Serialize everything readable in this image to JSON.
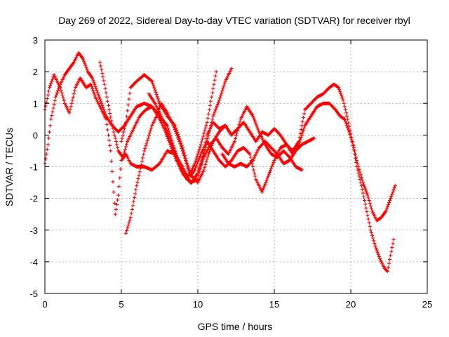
{
  "chart_data": {
    "type": "scatter",
    "title": "Day 269 of 2022, Sidereal Day-to-day VTEC variation (SDTVAR) for receiver rbyl",
    "xlabel": "GPS time / hours",
    "ylabel": "SDTVAR / TECUs",
    "xlim": [
      0,
      25
    ],
    "ylim": [
      -5,
      3
    ],
    "x_ticks": [
      0,
      5,
      10,
      15,
      20,
      25
    ],
    "y_ticks": [
      -5,
      -4,
      -3,
      -2,
      -1,
      0,
      1,
      2,
      3
    ],
    "grid": true,
    "legend": "none",
    "marker": "plus",
    "color": "#ff0000",
    "series": [
      {
        "x": [
          0.0,
          0.3,
          0.6,
          1.0,
          1.3,
          1.6,
          1.8,
          2.0,
          2.3,
          2.7,
          3.0,
          3.3,
          3.6,
          4.0,
          4.3,
          4.5,
          4.6,
          4.8,
          5.0,
          5.3,
          5.6,
          6.0,
          6.5,
          7.0,
          7.5,
          8.0,
          8.5,
          9.0,
          9.5,
          10.0,
          10.3,
          10.6,
          11.0,
          11.4,
          11.8,
          12.2
        ],
        "y": [
          0.8,
          1.5,
          1.9,
          1.5,
          1.0,
          0.7,
          1.1,
          1.5,
          1.8,
          1.5,
          1.6,
          1.2,
          0.9,
          0.5,
          -0.5,
          -1.8,
          -2.5,
          -1.9,
          -0.8,
          -0.6,
          -0.9,
          -1.0,
          -1.0,
          -1.1,
          -0.9,
          -0.5,
          -0.6,
          -1.0,
          -1.5,
          -1.4,
          -0.7,
          0.0,
          0.4,
          0.2,
          0.3,
          0.0
        ]
      },
      {
        "x": [
          0.0,
          0.2,
          0.4,
          0.7,
          1.0,
          1.3,
          1.6,
          1.9,
          2.2,
          2.5,
          2.8,
          3.1,
          3.4,
          3.7,
          4.0,
          4.4,
          4.8,
          5.2,
          5.6,
          6.0,
          6.5,
          7.0,
          7.5,
          8.0,
          8.5,
          9.0,
          9.3,
          9.6,
          10.0,
          10.4,
          10.7,
          11.0,
          11.4,
          11.8,
          12.2
        ],
        "y": [
          -0.9,
          -0.3,
          0.5,
          1.2,
          1.6,
          1.9,
          2.1,
          2.3,
          2.6,
          2.4,
          2.0,
          1.8,
          1.4,
          1.0,
          0.6,
          0.3,
          0.1,
          0.3,
          0.6,
          0.9,
          1.0,
          0.9,
          0.6,
          0.3,
          -0.5,
          -1.2,
          -1.4,
          -1.5,
          -1.2,
          -0.6,
          0.0,
          0.6,
          1.1,
          1.7,
          2.1
        ]
      },
      {
        "x": [
          5.0,
          5.3,
          5.6,
          6.0,
          6.5,
          7.0,
          7.5,
          8.0,
          8.5,
          9.0,
          9.3,
          9.6,
          10.0,
          10.4,
          10.7,
          11.0,
          11.4,
          11.8,
          12.2,
          12.6,
          13.0,
          13.4,
          13.8,
          14.2,
          14.6,
          15.0,
          15.4,
          15.8,
          16.2,
          16.6,
          17.0,
          17.4,
          17.8,
          18.2,
          18.6,
          18.9,
          19.2,
          19.5,
          19.8,
          20.1,
          20.4,
          20.7,
          21.0,
          21.3,
          21.6,
          21.9,
          22.2,
          22.4,
          22.6,
          22.8
        ],
        "y": [
          -0.2,
          0.4,
          1.5,
          1.7,
          1.9,
          1.7,
          1.0,
          0.6,
          0.3,
          -0.4,
          -0.9,
          -1.3,
          -1.5,
          -1.1,
          -0.6,
          -0.2,
          0.1,
          0.3,
          0.0,
          0.2,
          0.4,
          0.1,
          -0.2,
          0.1,
          0.0,
          0.2,
          0.0,
          -0.3,
          -0.5,
          -0.2,
          0.8,
          1.0,
          1.2,
          1.3,
          1.5,
          1.6,
          1.5,
          1.1,
          0.5,
          -0.2,
          -1.0,
          -1.6,
          -2.3,
          -3.0,
          -3.5,
          -3.9,
          -4.2,
          -4.3,
          -3.8,
          -3.3
        ]
      },
      {
        "x": [
          5.3,
          5.6,
          6.0,
          6.5,
          7.0,
          7.3,
          7.6,
          8.0,
          8.4,
          8.8,
          9.2,
          9.5,
          9.8,
          10.2,
          10.6,
          11.0,
          11.4,
          11.8,
          12.2,
          12.6,
          13.0,
          13.4,
          13.8,
          14.2,
          14.6,
          15.0,
          15.4,
          15.8,
          16.2,
          16.6,
          17.0,
          17.4,
          17.8,
          18.2,
          18.6,
          19.0,
          19.3,
          19.6,
          19.9,
          20.2,
          20.5,
          20.8,
          21.1,
          21.4,
          21.7,
          22.0,
          22.3,
          22.6,
          22.9
        ],
        "y": [
          -3.1,
          -2.6,
          -1.6,
          -0.5,
          0.3,
          0.6,
          1.0,
          0.7,
          0.3,
          -0.2,
          -0.8,
          -1.3,
          -1.1,
          -0.6,
          -0.2,
          -0.5,
          -0.8,
          -1.0,
          -0.8,
          -0.5,
          -0.4,
          -0.6,
          -1.4,
          -1.8,
          -1.3,
          -0.8,
          -0.4,
          -0.3,
          -0.6,
          -0.3,
          0.3,
          0.6,
          0.9,
          1.0,
          1.0,
          0.8,
          0.6,
          0.5,
          0.1,
          -0.4,
          -1.0,
          -1.5,
          -1.9,
          -2.4,
          -2.7,
          -2.6,
          -2.4,
          -2.0,
          -1.6
        ]
      },
      {
        "x": [
          3.6,
          3.9,
          4.2,
          4.5,
          4.8,
          5.1,
          5.4,
          5.8,
          6.2,
          6.6,
          7.0,
          7.4,
          7.8,
          8.2,
          8.6,
          9.0,
          9.4,
          9.8,
          10.2,
          10.6,
          10.9,
          11.2
        ],
        "y": [
          2.3,
          1.6,
          0.8,
          0.1,
          -0.5,
          -0.7,
          -0.2,
          0.2,
          0.6,
          0.8,
          0.9,
          0.6,
          0.2,
          -0.3,
          -0.8,
          -1.2,
          -1.3,
          -0.9,
          -0.3,
          0.4,
          1.2,
          2.0
        ]
      },
      {
        "x": [
          11.6,
          12.0,
          12.4,
          12.8,
          13.2,
          13.6,
          14.0,
          14.4,
          14.8,
          15.2,
          15.6,
          16.0,
          16.4,
          16.8,
          17.2,
          17.6
        ],
        "y": [
          -0.6,
          -0.9,
          -1.0,
          -0.9,
          -1.0,
          -0.8,
          -0.4,
          -0.2,
          -0.4,
          -0.6,
          -0.9,
          -0.8,
          -0.5,
          -0.3,
          -0.2,
          -0.1
        ]
      },
      {
        "x": [
          6.8,
          7.2,
          7.6,
          8.0,
          8.4,
          8.8,
          9.2,
          9.6,
          10.0,
          10.4,
          10.8,
          11.2,
          11.6,
          12.0,
          12.4,
          12.8,
          13.2,
          13.6,
          14.0,
          14.4,
          14.8,
          15.2,
          15.6,
          16.0,
          16.4,
          16.8
        ],
        "y": [
          1.3,
          1.0,
          0.6,
          0.1,
          -0.4,
          -0.9,
          -1.3,
          -1.5,
          -1.2,
          -0.7,
          -0.3,
          -0.1,
          -0.4,
          -0.6,
          -0.2,
          0.5,
          0.9,
          0.6,
          0.1,
          -0.3,
          -0.6,
          -0.7,
          -0.5,
          -0.7,
          -1.0,
          -1.1
        ]
      }
    ]
  }
}
